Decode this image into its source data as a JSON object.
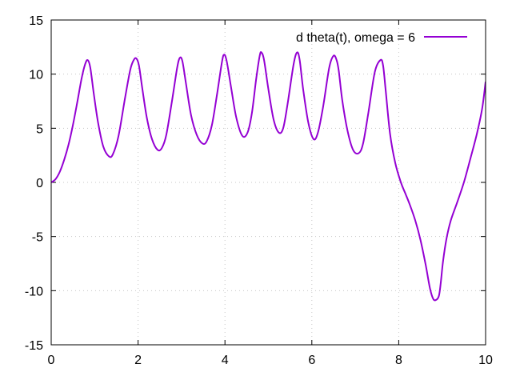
{
  "chart_data": {
    "type": "line",
    "title": "",
    "xlabel": "",
    "ylabel": "",
    "xlim": [
      0,
      10
    ],
    "ylim": [
      -15,
      15
    ],
    "x_ticks": [
      "0",
      "2",
      "4",
      "6",
      "8",
      "10"
    ],
    "y_ticks": [
      "15",
      "10",
      "5",
      "0",
      "-5",
      "-10",
      "-15"
    ],
    "grid": true,
    "legend_position": "top-right",
    "series": [
      {
        "name": "d theta(t), omega = 6",
        "color": "#9400d3",
        "x": [
          0,
          0.1,
          0.2,
          0.3,
          0.4,
          0.5,
          0.6,
          0.7,
          0.78,
          0.84,
          0.9,
          0.98,
          1.08,
          1.2,
          1.33,
          1.42,
          1.55,
          1.7,
          1.82,
          1.9,
          1.96,
          2.02,
          2.1,
          2.2,
          2.32,
          2.45,
          2.55,
          2.65,
          2.78,
          2.9,
          2.96,
          3.02,
          3.1,
          3.22,
          3.35,
          3.48,
          3.58,
          3.7,
          3.82,
          3.93,
          3.98,
          4.04,
          4.14,
          4.26,
          4.4,
          4.52,
          4.62,
          4.72,
          4.8,
          4.84,
          4.9,
          5.0,
          5.12,
          5.24,
          5.34,
          5.44,
          5.58,
          5.66,
          5.72,
          5.8,
          5.92,
          6.04,
          6.14,
          6.26,
          6.4,
          6.5,
          6.57,
          6.62,
          6.7,
          6.82,
          6.95,
          7.08,
          7.18,
          7.3,
          7.45,
          7.58,
          7.64,
          7.7,
          7.8,
          7.92,
          8.05,
          8.15,
          8.25,
          8.38,
          8.5,
          8.62,
          8.72,
          8.8,
          8.88,
          8.93,
          8.97,
          9.02,
          9.1,
          9.2,
          9.35,
          9.5,
          9.65,
          9.8,
          9.92,
          10.0
        ],
        "y": [
          0,
          0.3,
          1.0,
          2.1,
          3.5,
          5.3,
          7.4,
          9.6,
          10.9,
          11.3,
          10.6,
          8.2,
          5.5,
          3.3,
          2.4,
          2.6,
          4.3,
          7.8,
          10.4,
          11.3,
          11.45,
          10.8,
          8.6,
          6.0,
          4.0,
          3.0,
          3.2,
          4.4,
          7.5,
          10.6,
          11.5,
          11.2,
          9.2,
          6.2,
          4.4,
          3.6,
          3.8,
          5.3,
          8.2,
          11.1,
          11.8,
          11.2,
          8.8,
          6.0,
          4.3,
          4.6,
          6.4,
          9.6,
          11.7,
          12.0,
          11.3,
          8.6,
          5.8,
          4.6,
          5.0,
          7.2,
          10.9,
          12.0,
          11.3,
          8.6,
          5.5,
          4.0,
          4.6,
          7.0,
          10.6,
          11.7,
          11.3,
          10.3,
          7.6,
          4.8,
          3.0,
          2.7,
          3.6,
          6.4,
          10.2,
          11.3,
          10.8,
          8.5,
          4.5,
          1.8,
          0.0,
          -1.0,
          -2.0,
          -3.5,
          -5.3,
          -7.6,
          -9.8,
          -10.8,
          -10.8,
          -10.4,
          -9.2,
          -7.3,
          -5.2,
          -3.5,
          -1.8,
          0.0,
          2.2,
          4.5,
          6.8,
          9.3
        ]
      }
    ]
  }
}
